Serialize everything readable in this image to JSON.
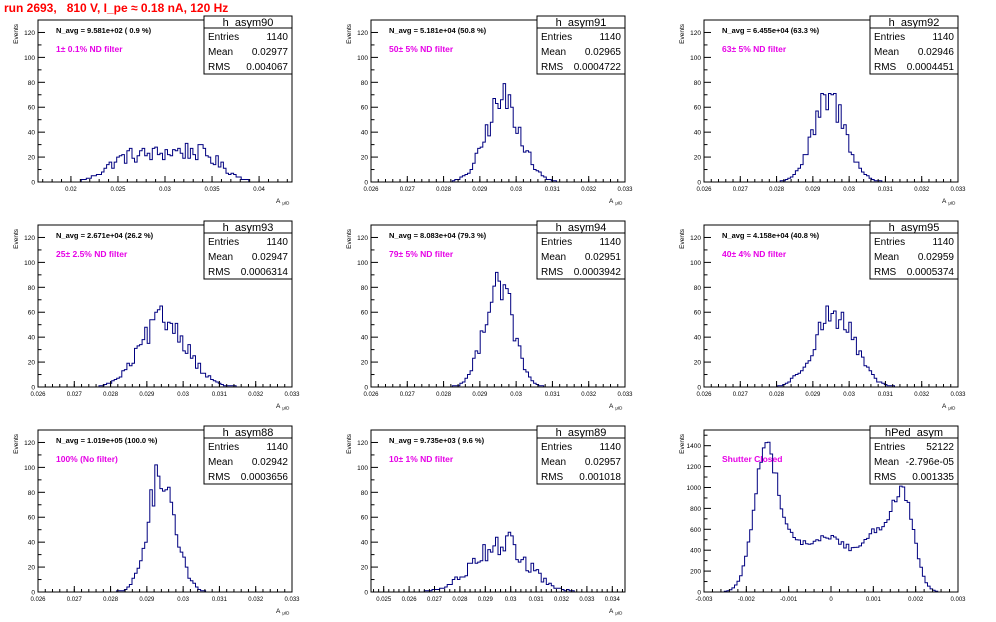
{
  "page": {
    "title": "run 2693,   810 V, I_pe ≈ 0.18 nA, 120 Hz"
  },
  "colors": {
    "histogram": "#000080",
    "annotation": "#e600e6",
    "title": "#ff0000"
  },
  "stat_labels": {
    "entries": "Entries",
    "mean": "Mean",
    "rms": "RMS"
  },
  "chart_data": [
    {
      "type": "bar",
      "name": "h_asym90",
      "nline": "N_avg = 9.581e+02 ( 0.9 %)",
      "note": "1± 0.1% ND filter",
      "entries": "1140",
      "mean": "0.02977",
      "rms": "0.004067",
      "ylabel": "Events",
      "xlabel": "A",
      "xlabel_sub": "μID",
      "xlim": [
        0.0165,
        0.0435
      ],
      "ylim": [
        0,
        130
      ],
      "yticks": [
        0,
        20,
        40,
        60,
        80,
        100,
        120
      ],
      "xticks": [
        0.02,
        0.025,
        0.03,
        0.035,
        0.04
      ],
      "xtick_labels": [
        "0.02",
        "0.025",
        "0.03",
        "0.035",
        "0.04"
      ],
      "peaks": [
        {
          "mu": 0.0255,
          "sig": 0.002,
          "h": 14
        },
        {
          "mu": 0.0305,
          "sig": 0.003,
          "h": 22
        },
        {
          "mu": 0.0345,
          "sig": 0.002,
          "h": 12
        }
      ],
      "xmin": 0.021,
      "xmax": 0.039,
      "noise": 0.3
    },
    {
      "type": "bar",
      "name": "h_asym91",
      "nline": "N_avg = 5.181e+04 (50.8 %)",
      "note": "50± 5% ND filter",
      "entries": "1140",
      "mean": "0.02965",
      "rms": "0.0004722",
      "ylabel": "Events",
      "xlabel": "A",
      "xlabel_sub": "μID",
      "xlim": [
        0.026,
        0.033
      ],
      "ylim": [
        0,
        130
      ],
      "yticks": [
        0,
        20,
        40,
        60,
        80,
        100,
        120
      ],
      "xticks": [
        0.026,
        0.027,
        0.028,
        0.029,
        0.03,
        0.031,
        0.032,
        0.033
      ],
      "xtick_labels": [
        "0.026",
        "0.027",
        "0.028",
        "0.029",
        "0.03",
        "0.031",
        "0.032",
        "0.033"
      ],
      "peaks": [
        {
          "mu": 0.02965,
          "sig": 0.00047,
          "h": 66
        }
      ],
      "xmin": 0.0282,
      "xmax": 0.0312,
      "noise": 0.22
    },
    {
      "type": "bar",
      "name": "h_asym92",
      "nline": "N_avg = 6.455e+04 (63.3 %)",
      "note": "63± 5% ND filter",
      "entries": "1140",
      "mean": "0.02946",
      "rms": "0.0004451",
      "ylabel": "Events",
      "xlabel": "A",
      "xlabel_sub": "μID",
      "xlim": [
        0.026,
        0.033
      ],
      "ylim": [
        0,
        130
      ],
      "yticks": [
        0,
        20,
        40,
        60,
        80,
        100,
        120
      ],
      "xticks": [
        0.026,
        0.027,
        0.028,
        0.029,
        0.03,
        0.031,
        0.032,
        0.033
      ],
      "xtick_labels": [
        "0.026",
        "0.027",
        "0.028",
        "0.029",
        "0.03",
        "0.031",
        "0.032",
        "0.033"
      ],
      "peaks": [
        {
          "mu": 0.02946,
          "sig": 0.00045,
          "h": 65
        }
      ],
      "xmin": 0.0281,
      "xmax": 0.0311,
      "noise": 0.22
    },
    {
      "type": "bar",
      "name": "h_asym93",
      "nline": "N_avg = 2.671e+04 (26.2 %)",
      "note": "25± 2.5% ND filter",
      "entries": "1140",
      "mean": "0.02947",
      "rms": "0.0006314",
      "ylabel": "Events",
      "xlabel": "A",
      "xlabel_sub": "μID",
      "xlim": [
        0.026,
        0.033
      ],
      "ylim": [
        0,
        130
      ],
      "yticks": [
        0,
        20,
        40,
        60,
        80,
        100,
        120
      ],
      "xticks": [
        0.026,
        0.027,
        0.028,
        0.029,
        0.03,
        0.031,
        0.032,
        0.033
      ],
      "xtick_labels": [
        "0.026",
        "0.027",
        "0.028",
        "0.029",
        "0.03",
        "0.031",
        "0.032",
        "0.033"
      ],
      "peaks": [
        {
          "mu": 0.02947,
          "sig": 0.00063,
          "h": 54
        }
      ],
      "xmin": 0.0277,
      "xmax": 0.0315,
      "noise": 0.22
    },
    {
      "type": "bar",
      "name": "h_asym94",
      "nline": "N_avg = 8.083e+04 (79.3 %)",
      "note": "79± 5% ND filter",
      "entries": "1140",
      "mean": "0.02951",
      "rms": "0.0003942",
      "ylabel": "Events",
      "xlabel": "A",
      "xlabel_sub": "μID",
      "xlim": [
        0.026,
        0.033
      ],
      "ylim": [
        0,
        130
      ],
      "yticks": [
        0,
        20,
        40,
        60,
        80,
        100,
        120
      ],
      "xticks": [
        0.026,
        0.027,
        0.028,
        0.029,
        0.03,
        0.031,
        0.032,
        0.033
      ],
      "xtick_labels": [
        "0.026",
        "0.027",
        "0.028",
        "0.029",
        "0.03",
        "0.031",
        "0.032",
        "0.033"
      ],
      "peaks": [
        {
          "mu": 0.02951,
          "sig": 0.00039,
          "h": 86
        }
      ],
      "xmin": 0.0282,
      "xmax": 0.031,
      "noise": 0.2
    },
    {
      "type": "bar",
      "name": "h_asym95",
      "nline": "N_avg = 4.158e+04 (40.8 %)",
      "note": "40± 4% ND filter",
      "entries": "1140",
      "mean": "0.02959",
      "rms": "0.0005374",
      "ylabel": "Events",
      "xlabel": "A",
      "xlabel_sub": "μID",
      "xlim": [
        0.026,
        0.033
      ],
      "ylim": [
        0,
        130
      ],
      "yticks": [
        0,
        20,
        40,
        60,
        80,
        100,
        120
      ],
      "xticks": [
        0.026,
        0.027,
        0.028,
        0.029,
        0.03,
        0.031,
        0.032,
        0.033
      ],
      "xtick_labels": [
        "0.026",
        "0.027",
        "0.028",
        "0.029",
        "0.03",
        "0.031",
        "0.032",
        "0.033"
      ],
      "peaks": [
        {
          "mu": 0.02959,
          "sig": 0.00054,
          "h": 60
        }
      ],
      "xmin": 0.028,
      "xmax": 0.0314,
      "noise": 0.22
    },
    {
      "type": "bar",
      "name": "h_asym88",
      "nline": "N_avg = 1.019e+05 (100.0 %)",
      "note": "100% (No filter)",
      "entries": "1140",
      "mean": "0.02942",
      "rms": "0.0003656",
      "ylabel": "Events",
      "xlabel": "A",
      "xlabel_sub": "μID",
      "xlim": [
        0.026,
        0.033
      ],
      "ylim": [
        0,
        130
      ],
      "yticks": [
        0,
        20,
        40,
        60,
        80,
        100,
        120
      ],
      "xticks": [
        0.026,
        0.027,
        0.028,
        0.029,
        0.03,
        0.031,
        0.032,
        0.033
      ],
      "xtick_labels": [
        "0.026",
        "0.027",
        "0.028",
        "0.029",
        "0.03",
        "0.031",
        "0.032",
        "0.033"
      ],
      "peaks": [
        {
          "mu": 0.02942,
          "sig": 0.00037,
          "h": 96
        }
      ],
      "xmin": 0.0282,
      "xmax": 0.0309,
      "noise": 0.2
    },
    {
      "type": "bar",
      "name": "h_asym89",
      "nline": "N_avg = 9.735e+03 ( 9.6 %)",
      "note": "10± 1% ND filter",
      "entries": "1140",
      "mean": "0.02957",
      "rms": "0.001018",
      "ylabel": "Events",
      "xlabel": "A",
      "xlabel_sub": "μID",
      "xlim": [
        0.0245,
        0.0345
      ],
      "ylim": [
        0,
        130
      ],
      "yticks": [
        0,
        20,
        40,
        60,
        80,
        100,
        120
      ],
      "xticks": [
        0.025,
        0.026,
        0.027,
        0.028,
        0.029,
        0.03,
        0.031,
        0.032,
        0.033,
        0.034
      ],
      "xtick_labels": [
        "0.025",
        "0.026",
        "0.027",
        "0.028",
        "0.029",
        "0.03",
        "0.031",
        "0.032",
        "0.033",
        "0.034"
      ],
      "peaks": [
        {
          "mu": 0.02957,
          "sig": 0.00102,
          "h": 40
        }
      ],
      "xmin": 0.0265,
      "xmax": 0.0325,
      "noise": 0.28
    },
    {
      "type": "bar",
      "name": "hPed_asym",
      "nline": "",
      "note": "Shutter Closed",
      "entries": "52122",
      "mean": "-2.796e-05",
      "rms": "0.001335",
      "ylabel": "Events",
      "xlabel": "",
      "xlabel_sub": "",
      "xlim": [
        -0.003,
        0.003
      ],
      "ylim": [
        0,
        1550
      ],
      "yticks": [
        0,
        200,
        400,
        600,
        800,
        1000,
        1200,
        1400
      ],
      "xticks": [
        -0.003,
        -0.002,
        -0.001,
        0,
        0.001,
        0.002,
        0.003
      ],
      "xtick_labels": [
        "-0.003",
        "-0.002",
        "-0.001",
        "0",
        "0.001",
        "0.002",
        "0.003"
      ],
      "peaks": [
        {
          "mu": -0.00155,
          "sig": 0.00028,
          "h": 1200
        },
        {
          "mu": -0.0009,
          "sig": 0.0005,
          "h": 420
        },
        {
          "mu": 5e-05,
          "sig": 0.0004,
          "h": 430
        },
        {
          "mu": 0.0011,
          "sig": 0.0004,
          "h": 560
        },
        {
          "mu": 0.00172,
          "sig": 0.00025,
          "h": 780
        }
      ],
      "xmin": -0.0025,
      "xmax": 0.0025,
      "noise": 0.06
    }
  ]
}
